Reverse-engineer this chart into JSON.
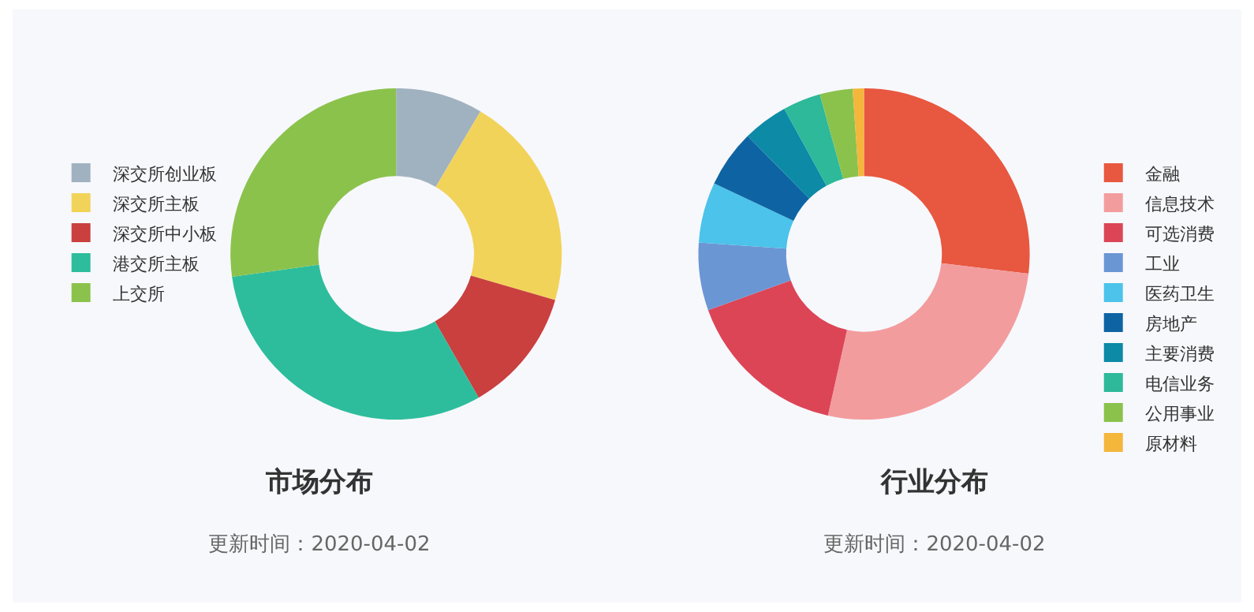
{
  "chart_data": [
    {
      "type": "donut",
      "title": "市场分布",
      "subtitle": "更新时间：2020-04-02",
      "legend": "left",
      "categories": [
        "深交所创业板",
        "深交所主板",
        "深交所中小板",
        "港交所主板",
        "上交所"
      ],
      "values": [
        8.5,
        21,
        12.2,
        31.1,
        27.2
      ],
      "colors": [
        "#a0b2c0",
        "#f2d35a",
        "#c9403f",
        "#2dbd9c",
        "#8bc24c"
      ]
    },
    {
      "type": "donut",
      "title": "行业分布",
      "subtitle": "更新时间：2020-04-02",
      "legend": "right",
      "categories": [
        "金融",
        "信息技术",
        "可选消费",
        "工业",
        "医药卫生",
        "房地产",
        "主要消费",
        "电信业务",
        "公用事业",
        "原材料"
      ],
      "values": [
        26.9,
        26.6,
        16,
        6.6,
        5.9,
        5.6,
        4.4,
        3.7,
        3.2,
        1.1
      ],
      "colors": [
        "#e8573f",
        "#f39c9e",
        "#dc4556",
        "#6b96d4",
        "#4bc3ea",
        "#0e64a3",
        "#0c8aa6",
        "#2db99a",
        "#8bc24c",
        "#f4b63b"
      ]
    }
  ]
}
